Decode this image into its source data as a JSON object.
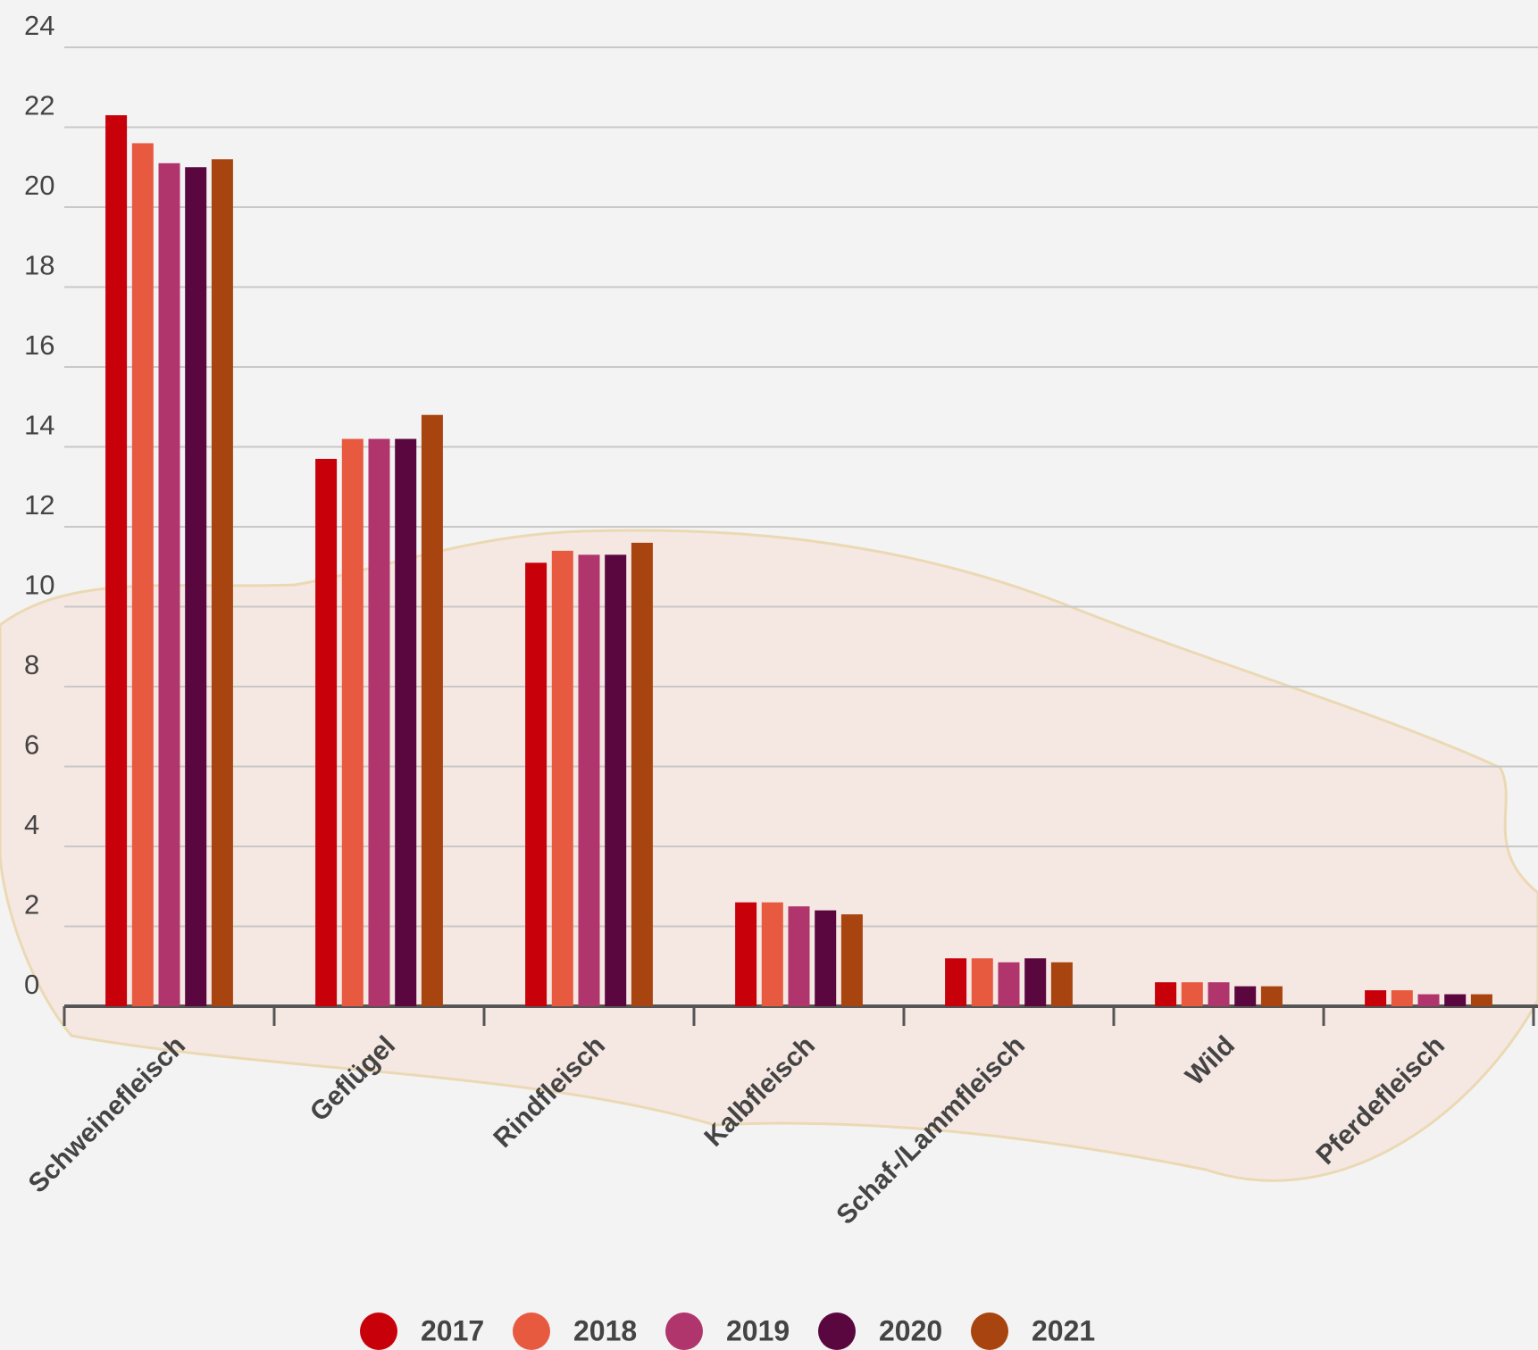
{
  "chart_data": {
    "type": "bar",
    "categories": [
      "Schweinefleisch",
      "Geflügel",
      "Rindfleisch",
      "Kalbfleisch",
      "Schaf-/Lammfleisch",
      "Wild",
      "Pferdefleisch"
    ],
    "series": [
      {
        "name": "2017",
        "color": "#c8000a",
        "values": [
          22.3,
          13.7,
          11.1,
          2.6,
          1.2,
          0.6,
          0.4
        ]
      },
      {
        "name": "2018",
        "color": "#e85a40",
        "values": [
          21.6,
          14.2,
          11.4,
          2.6,
          1.2,
          0.6,
          0.4
        ]
      },
      {
        "name": "2019",
        "color": "#b0356d",
        "values": [
          21.1,
          14.2,
          11.3,
          2.5,
          1.1,
          0.6,
          0.3
        ]
      },
      {
        "name": "2020",
        "color": "#5a0740",
        "values": [
          21.0,
          14.2,
          11.3,
          2.4,
          1.2,
          0.5,
          0.3
        ]
      },
      {
        "name": "2021",
        "color": "#a8440f",
        "values": [
          21.2,
          14.8,
          11.6,
          2.3,
          1.1,
          0.5,
          0.3
        ]
      }
    ],
    "ylim": [
      0,
      24
    ],
    "yticks": [
      0,
      2,
      4,
      6,
      8,
      10,
      12,
      14,
      16,
      18,
      20,
      22,
      24
    ],
    "grid": true,
    "legend": "bottom"
  }
}
